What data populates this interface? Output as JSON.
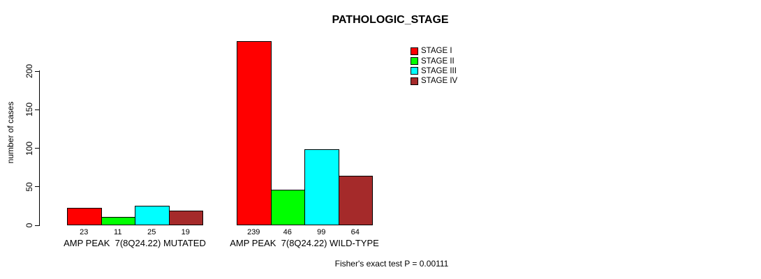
{
  "title": "PATHOLOGIC_STAGE",
  "y_axis": {
    "label": "number of cases",
    "ticks": [
      0,
      50,
      100,
      150,
      200
    ]
  },
  "legend": [
    {
      "label": "STAGE I",
      "color": "#FF0000"
    },
    {
      "label": "STAGE II",
      "color": "#00FF00"
    },
    {
      "label": "STAGE III",
      "color": "#00FFFF"
    },
    {
      "label": "STAGE IV",
      "color": "#A52A2A"
    }
  ],
  "footer": "Fisher's exact test P = 0.00111",
  "chart_data": {
    "type": "bar",
    "title": "PATHOLOGIC_STAGE",
    "xlabel": "",
    "ylabel": "number of cases",
    "categories": [
      "AMP PEAK  7(8Q24.22) MUTATED",
      "AMP PEAK  7(8Q24.22) WILD-TYPE"
    ],
    "series": [
      {
        "name": "STAGE I",
        "color": "#FF0000",
        "values": [
          23,
          239
        ]
      },
      {
        "name": "STAGE II",
        "color": "#00FF00",
        "values": [
          11,
          46
        ]
      },
      {
        "name": "STAGE III",
        "color": "#00FFFF",
        "values": [
          25,
          99
        ]
      },
      {
        "name": "STAGE IV",
        "color": "#A52A2A",
        "values": [
          19,
          64
        ]
      }
    ],
    "bar_value_labels": [
      [
        23,
        11,
        25,
        19
      ],
      [
        239,
        46,
        99,
        64
      ]
    ],
    "ylim": [
      0,
      250
    ],
    "yticks": [
      0,
      50,
      100,
      150,
      200
    ],
    "grid": false,
    "legend_position": "top-right",
    "annotation": "Fisher's exact test P = 0.00111"
  }
}
